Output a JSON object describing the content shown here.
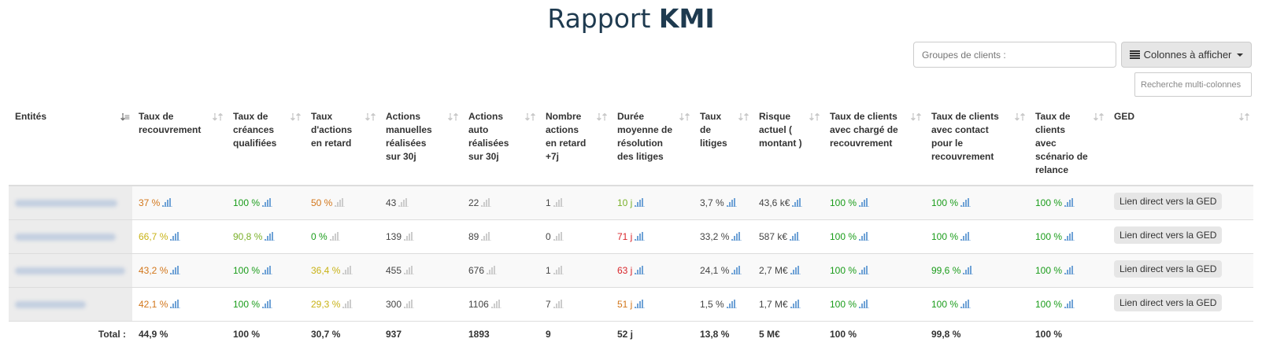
{
  "title": {
    "prefix": "Rapport",
    "bold": "KMI"
  },
  "toolbar": {
    "groups_placeholder": "Groupes de clients :",
    "columns_button_label": "Colonnes à afficher",
    "columns_icon": "list-icon",
    "search_placeholder": "Recherche multi-colonnes"
  },
  "colors": {
    "orange": "#d2761a",
    "yellow": "#c8b215",
    "green": "#1a9c1a",
    "lightgreen": "#7ab02a",
    "red": "#d9262b",
    "default": "#444444",
    "spark_blue": "#6fa2d6",
    "spark_gray": "#cccccc"
  },
  "table": {
    "columns": [
      {
        "label": "Entités",
        "sort": "active"
      },
      {
        "label": "Taux de recouvrement"
      },
      {
        "label": "Taux de créances qualifiées"
      },
      {
        "label": "Taux d'actions en retard"
      },
      {
        "label": "Actions manuelles réalisées sur 30j"
      },
      {
        "label": "Actions auto réalisées sur 30j"
      },
      {
        "label": "Nombre actions en retard +7j"
      },
      {
        "label": "Durée moyenne de résolution des litiges"
      },
      {
        "label": "Taux de litiges"
      },
      {
        "label": "Risque actuel ( montant )"
      },
      {
        "label": "Taux de clients avec chargé de recouvrement"
      },
      {
        "label": "Taux de clients avec contact pour le recouvrement"
      },
      {
        "label": "Taux de clients avec scénario de relance"
      },
      {
        "label": "GED"
      }
    ],
    "rows": [
      {
        "entity_blur_width": 130,
        "cells": [
          {
            "v": "37 %",
            "c": "orange",
            "s": "blue"
          },
          {
            "v": "100 %",
            "c": "green",
            "s": "blue"
          },
          {
            "v": "50 %",
            "c": "orange",
            "s": "gray"
          },
          {
            "v": "43",
            "c": "default",
            "s": "gray"
          },
          {
            "v": "22",
            "c": "default",
            "s": "gray"
          },
          {
            "v": "1",
            "c": "default",
            "s": "gray"
          },
          {
            "v": "10 j",
            "c": "lightgreen",
            "s": "blue"
          },
          {
            "v": "3,7 %",
            "c": "default",
            "s": "blue"
          },
          {
            "v": "43,6 k€",
            "c": "default",
            "s": "blue"
          },
          {
            "v": "100 %",
            "c": "green",
            "s": "blue"
          },
          {
            "v": "100 %",
            "c": "green",
            "s": "blue"
          },
          {
            "v": "100 %",
            "c": "green",
            "s": "blue"
          }
        ],
        "ged_label": "Lien direct vers la GED"
      },
      {
        "entity_blur_width": 128,
        "cells": [
          {
            "v": "66,7 %",
            "c": "yellow",
            "s": "blue"
          },
          {
            "v": "90,8 %",
            "c": "lightgreen",
            "s": "blue"
          },
          {
            "v": "0 %",
            "c": "green",
            "s": "gray"
          },
          {
            "v": "139",
            "c": "default",
            "s": "gray"
          },
          {
            "v": "89",
            "c": "default",
            "s": "gray"
          },
          {
            "v": "0",
            "c": "default",
            "s": "gray"
          },
          {
            "v": "71 j",
            "c": "red",
            "s": "blue"
          },
          {
            "v": "33,2 %",
            "c": "default",
            "s": "blue"
          },
          {
            "v": "587 k€",
            "c": "default",
            "s": "blue"
          },
          {
            "v": "100 %",
            "c": "green",
            "s": "blue"
          },
          {
            "v": "100 %",
            "c": "green",
            "s": "blue"
          },
          {
            "v": "100 %",
            "c": "green",
            "s": "blue"
          }
        ],
        "ged_label": "Lien direct vers la GED"
      },
      {
        "entity_blur_width": 140,
        "cells": [
          {
            "v": "43,2 %",
            "c": "orange",
            "s": "blue"
          },
          {
            "v": "100 %",
            "c": "green",
            "s": "blue"
          },
          {
            "v": "36,4 %",
            "c": "yellow",
            "s": "gray"
          },
          {
            "v": "455",
            "c": "default",
            "s": "gray"
          },
          {
            "v": "676",
            "c": "default",
            "s": "gray"
          },
          {
            "v": "1",
            "c": "default",
            "s": "gray"
          },
          {
            "v": "63 j",
            "c": "red",
            "s": "blue"
          },
          {
            "v": "24,1 %",
            "c": "default",
            "s": "blue"
          },
          {
            "v": "2,7 M€",
            "c": "default",
            "s": "blue"
          },
          {
            "v": "100 %",
            "c": "green",
            "s": "blue"
          },
          {
            "v": "99,6 %",
            "c": "green",
            "s": "blue"
          },
          {
            "v": "100 %",
            "c": "green",
            "s": "blue"
          }
        ],
        "ged_label": "Lien direct vers la GED"
      },
      {
        "entity_blur_width": 90,
        "cells": [
          {
            "v": "42,1 %",
            "c": "orange",
            "s": "blue"
          },
          {
            "v": "100 %",
            "c": "green",
            "s": "blue"
          },
          {
            "v": "29,3 %",
            "c": "yellow",
            "s": "gray"
          },
          {
            "v": "300",
            "c": "default",
            "s": "gray"
          },
          {
            "v": "1106",
            "c": "default",
            "s": "gray"
          },
          {
            "v": "7",
            "c": "default",
            "s": "gray"
          },
          {
            "v": "51 j",
            "c": "orange",
            "s": "blue"
          },
          {
            "v": "1,5 %",
            "c": "default",
            "s": "blue"
          },
          {
            "v": "1,7 M€",
            "c": "default",
            "s": "blue"
          },
          {
            "v": "100 %",
            "c": "green",
            "s": "blue"
          },
          {
            "v": "100 %",
            "c": "green",
            "s": "blue"
          },
          {
            "v": "100 %",
            "c": "green",
            "s": "blue"
          }
        ],
        "ged_label": "Lien direct vers la GED"
      }
    ],
    "total": {
      "label": "Total :",
      "values": [
        "44,9 %",
        "100 %",
        "30,7 %",
        "937",
        "1893",
        "9",
        "52 j",
        "13,8 %",
        "5 M€",
        "100 %",
        "99,8 %",
        "100 %",
        ""
      ]
    }
  }
}
